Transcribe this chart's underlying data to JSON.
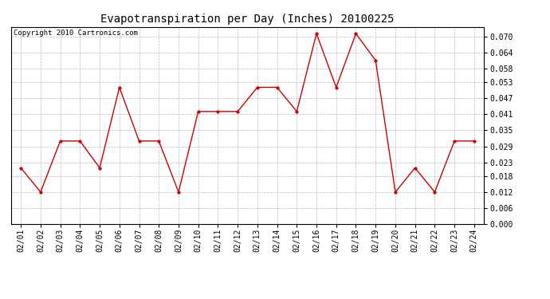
{
  "title": "Evapotranspiration per Day (Inches) 20100225",
  "copyright_text": "Copyright 2010 Cartronics.com",
  "dates": [
    "02/01",
    "02/02",
    "02/03",
    "02/04",
    "02/05",
    "02/06",
    "02/07",
    "02/08",
    "02/09",
    "02/10",
    "02/11",
    "02/12",
    "02/13",
    "02/14",
    "02/15",
    "02/16",
    "02/17",
    "02/18",
    "02/19",
    "02/20",
    "02/21",
    "02/22",
    "02/23",
    "02/24"
  ],
  "values": [
    0.021,
    0.012,
    0.031,
    0.031,
    0.021,
    0.051,
    0.031,
    0.031,
    0.012,
    0.042,
    0.042,
    0.042,
    0.051,
    0.051,
    0.042,
    0.071,
    0.051,
    0.071,
    0.061,
    0.012,
    0.021,
    0.012,
    0.031,
    0.031
  ],
  "line_color": "#cc0000",
  "marker_color": "#cc0000",
  "background_color": "#ffffff",
  "grid_color": "#bbbbbb",
  "ylim": [
    0.0,
    0.0735
  ],
  "yticks": [
    0.0,
    0.006,
    0.012,
    0.018,
    0.023,
    0.029,
    0.035,
    0.041,
    0.047,
    0.053,
    0.058,
    0.064,
    0.07
  ],
  "title_fontsize": 10,
  "copyright_fontsize": 6.5,
  "tick_fontsize": 7,
  "ylabel_fontsize": 7
}
